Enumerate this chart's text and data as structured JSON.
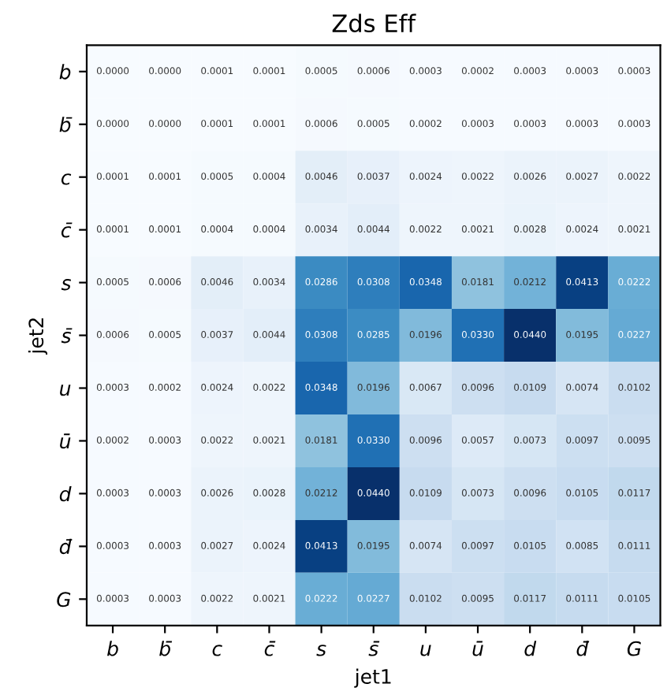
{
  "chart_data": {
    "type": "heatmap",
    "title": "Zds Eff",
    "xlabel": "jet1",
    "ylabel": "jet2",
    "categories": [
      "b",
      "b̄",
      "c",
      "c̄",
      "s",
      "s̄",
      "u",
      "ū",
      "d",
      "d̄",
      "G"
    ],
    "y_categories": [
      "b",
      "b̄",
      "c",
      "c̄",
      "s",
      "s̄",
      "u",
      "ū",
      "d",
      "d̄",
      "G"
    ],
    "cells": [
      [
        0.0,
        0.0,
        0.0001,
        0.0001,
        0.0005,
        0.0006,
        0.0003,
        0.0002,
        0.0003,
        0.0003,
        0.0003
      ],
      [
        0.0,
        0.0,
        0.0001,
        0.0001,
        0.0006,
        0.0005,
        0.0002,
        0.0003,
        0.0003,
        0.0003,
        0.0003
      ],
      [
        0.0001,
        0.0001,
        0.0005,
        0.0004,
        0.0046,
        0.0037,
        0.0024,
        0.0022,
        0.0026,
        0.0027,
        0.0022
      ],
      [
        0.0001,
        0.0001,
        0.0004,
        0.0004,
        0.0034,
        0.0044,
        0.0022,
        0.0021,
        0.0028,
        0.0024,
        0.0021
      ],
      [
        0.0005,
        0.0006,
        0.0046,
        0.0034,
        0.0286,
        0.0308,
        0.0348,
        0.0181,
        0.0212,
        0.0413,
        0.0222
      ],
      [
        0.0006,
        0.0005,
        0.0037,
        0.0044,
        0.0308,
        0.0285,
        0.0196,
        0.033,
        0.044,
        0.0195,
        0.0227
      ],
      [
        0.0003,
        0.0002,
        0.0024,
        0.0022,
        0.0348,
        0.0196,
        0.0067,
        0.0096,
        0.0109,
        0.0074,
        0.0102
      ],
      [
        0.0002,
        0.0003,
        0.0022,
        0.0021,
        0.0181,
        0.033,
        0.0096,
        0.0057,
        0.0073,
        0.0097,
        0.0095
      ],
      [
        0.0003,
        0.0003,
        0.0026,
        0.0028,
        0.0212,
        0.044,
        0.0109,
        0.0073,
        0.0096,
        0.0105,
        0.0117
      ],
      [
        0.0003,
        0.0003,
        0.0027,
        0.0024,
        0.0413,
        0.0195,
        0.0074,
        0.0097,
        0.0105,
        0.0085,
        0.0111
      ],
      [
        0.0003,
        0.0003,
        0.0022,
        0.0021,
        0.0222,
        0.0227,
        0.0102,
        0.0095,
        0.0117,
        0.0111,
        0.0105
      ]
    ],
    "cell_labels": [
      [
        "0.0000",
        "0.0000",
        "0.0001",
        "0.0001",
        "0.0005",
        "0.0006",
        "0.0003",
        "0.0002",
        "0.0003",
        "0.0003",
        "0.0003"
      ],
      [
        "0.0000",
        "0.0000",
        "0.0001",
        "0.0001",
        "0.0006",
        "0.0005",
        "0.0002",
        "0.0003",
        "0.0003",
        "0.0003",
        "0.0003"
      ],
      [
        "0.0001",
        "0.0001",
        "0.0005",
        "0.0004",
        "0.0046",
        "0.0037",
        "0.0024",
        "0.0022",
        "0.0026",
        "0.0027",
        "0.0022"
      ],
      [
        "0.0001",
        "0.0001",
        "0.0004",
        "0.0004",
        "0.0034",
        "0.0044",
        "0.0022",
        "0.0021",
        "0.0028",
        "0.0024",
        "0.0021"
      ],
      [
        "0.0005",
        "0.0006",
        "0.0046",
        "0.0034",
        "0.0286",
        "0.0308",
        "0.0348",
        "0.0181",
        "0.0212",
        "0.0413",
        "0.0222"
      ],
      [
        "0.0006",
        "0.0005",
        "0.0037",
        "0.0044",
        "0.0308",
        "0.0285",
        "0.0196",
        "0.0330",
        "0.0440",
        "0.0195",
        "0.0227"
      ],
      [
        "0.0003",
        "0.0002",
        "0.0024",
        "0.0022",
        "0.0348",
        "0.0196",
        "0.0067",
        "0.0096",
        "0.0109",
        "0.0074",
        "0.0102"
      ],
      [
        "0.0002",
        "0.0003",
        "0.0022",
        "0.0021",
        "0.0181",
        "0.0330",
        "0.0096",
        "0.0057",
        "0.0073",
        "0.0097",
        "0.0095"
      ],
      [
        "0.0003",
        "0.0003",
        "0.0026",
        "0.0028",
        "0.0212",
        "0.0440",
        "0.0109",
        "0.0073",
        "0.0096",
        "0.0105",
        "0.0117"
      ],
      [
        "0.0003",
        "0.0003",
        "0.0027",
        "0.0024",
        "0.0413",
        "0.0195",
        "0.0074",
        "0.0097",
        "0.0105",
        "0.0085",
        "0.0111"
      ],
      [
        "0.0003",
        "0.0003",
        "0.0022",
        "0.0021",
        "0.0222",
        "0.0227",
        "0.0102",
        "0.0095",
        "0.0117",
        "0.0111",
        "0.0105"
      ]
    ],
    "data_labels": true
  }
}
